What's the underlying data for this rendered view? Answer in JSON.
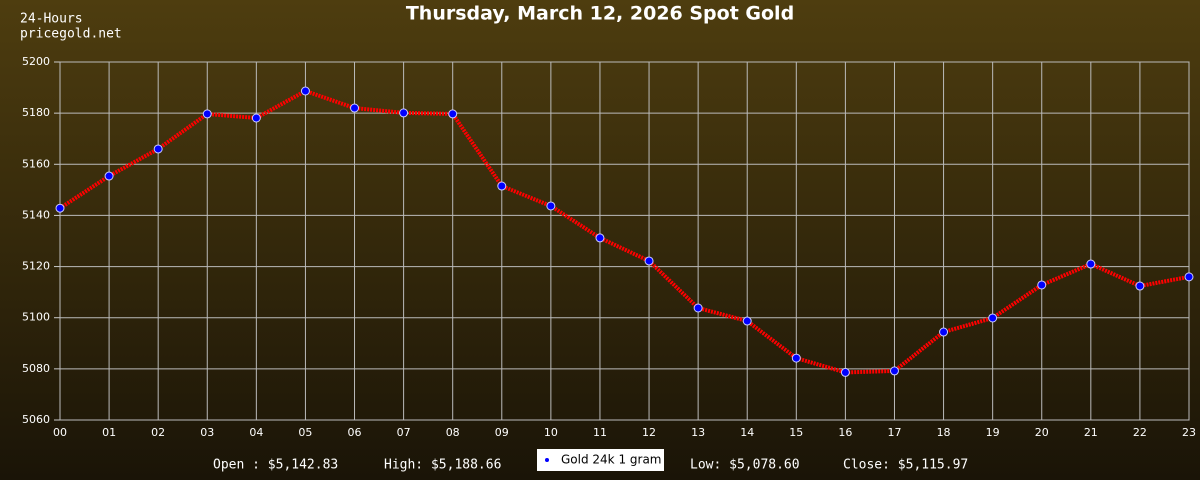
{
  "header": {
    "period": "24-Hours",
    "source": "pricegold.net"
  },
  "chart_data": {
    "type": "line",
    "title": "Thursday, March 12, 2026 Spot Gold",
    "categories": [
      "00",
      "01",
      "02",
      "03",
      "04",
      "05",
      "06",
      "07",
      "08",
      "09",
      "10",
      "11",
      "12",
      "13",
      "14",
      "15",
      "16",
      "17",
      "18",
      "19",
      "20",
      "21",
      "22",
      "23"
    ],
    "series": [
      {
        "name": "Gold 24k 1 gram",
        "color": "#ff0000",
        "marker_color": "#0000ff",
        "values": [
          5142.83,
          5155.4,
          5166.0,
          5179.7,
          5178.1,
          5188.66,
          5182.0,
          5180.1,
          5179.7,
          5151.5,
          5143.7,
          5131.2,
          5122.2,
          5103.8,
          5098.7,
          5084.2,
          5078.6,
          5079.2,
          5094.4,
          5099.9,
          5112.8,
          5121.0,
          5112.4,
          5115.97
        ]
      }
    ],
    "ylim": [
      5060,
      5200
    ],
    "yticks": [
      5060,
      5080,
      5100,
      5120,
      5140,
      5160,
      5180,
      5200
    ],
    "grid": true
  },
  "summary": {
    "open": "Open : $5,142.83",
    "high": "High: $5,188.66",
    "low": "Low: $5,078.60",
    "close": "Close: $5,115.97"
  }
}
